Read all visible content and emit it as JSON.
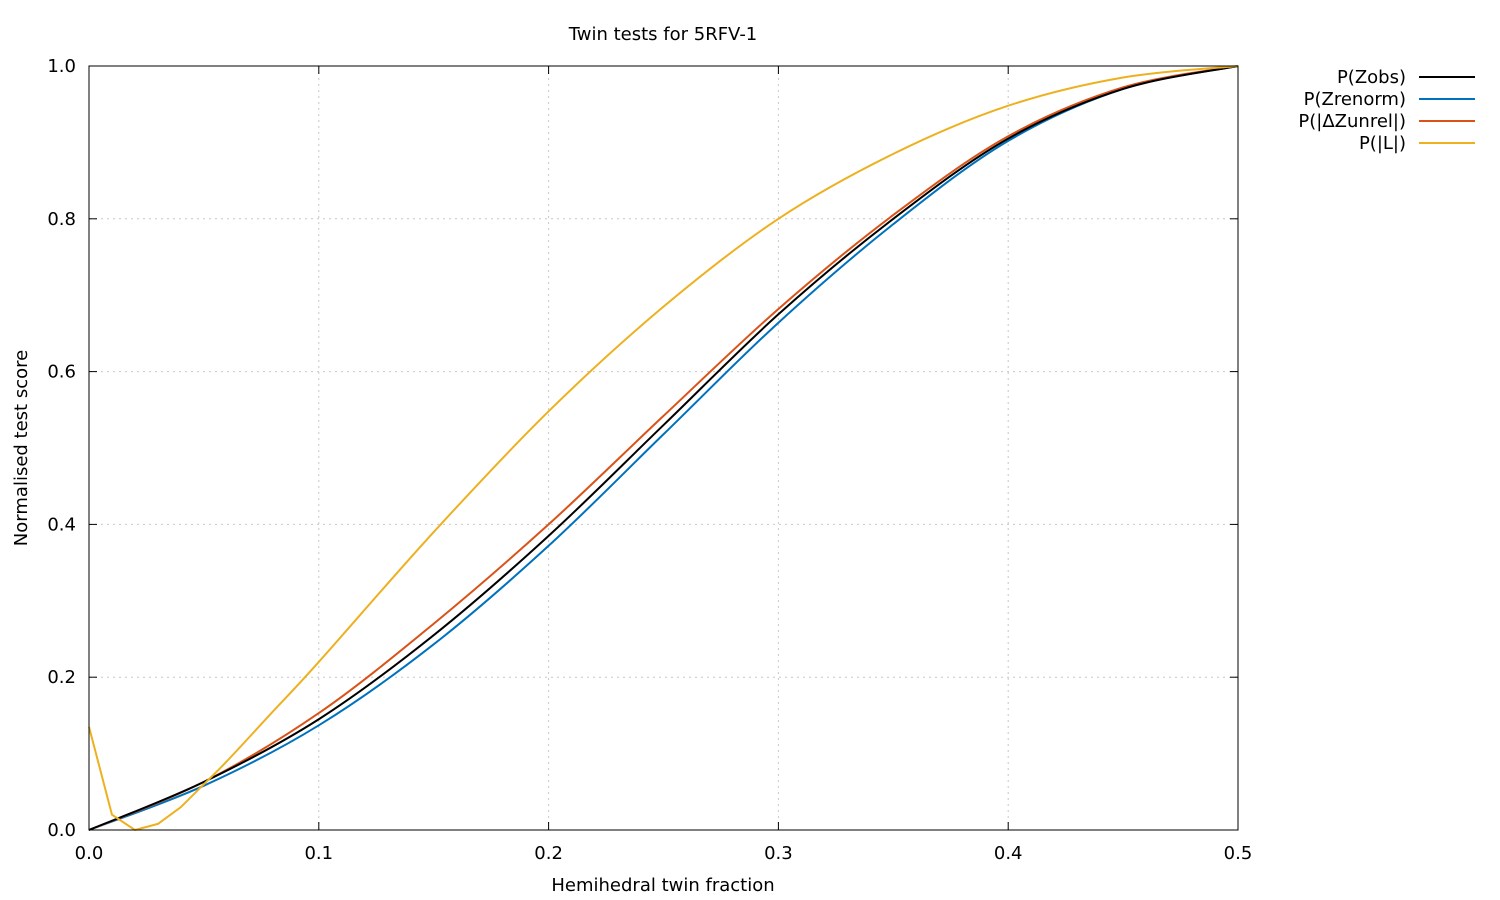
{
  "chart_data": {
    "type": "line",
    "title": "Twin tests for 5RFV-1",
    "xlabel": "Hemihedral twin fraction",
    "ylabel": "Normalised test score",
    "xlim": [
      0,
      0.5
    ],
    "ylim": [
      0,
      1
    ],
    "x_ticks": [
      "0.0",
      "0.1",
      "0.2",
      "0.3",
      "0.4",
      "0.5"
    ],
    "y_ticks": [
      "0.0",
      "0.2",
      "0.4",
      "0.6",
      "0.8",
      "1.0"
    ],
    "grid": true,
    "legend_position": "outside-top-right",
    "series": [
      {
        "name": "P(Zobs)",
        "color": "#000000",
        "x": [
          0,
          0.05,
          0.1,
          0.15,
          0.2,
          0.25,
          0.3,
          0.35,
          0.4,
          0.45,
          0.5
        ],
        "y": [
          0,
          0.063,
          0.145,
          0.255,
          0.385,
          0.53,
          0.675,
          0.8,
          0.905,
          0.97,
          1.0
        ]
      },
      {
        "name": "P(Zrenorm)",
        "color": "#0072bd",
        "x": [
          0,
          0.05,
          0.1,
          0.15,
          0.2,
          0.25,
          0.3,
          0.35,
          0.4,
          0.45,
          0.5
        ],
        "y": [
          0,
          0.058,
          0.137,
          0.243,
          0.372,
          0.518,
          0.664,
          0.793,
          0.902,
          0.97,
          1.0
        ]
      },
      {
        "name": "P(|ΔZunrel|)",
        "color": "#d95319",
        "x": [
          0,
          0.05,
          0.1,
          0.15,
          0.2,
          0.25,
          0.3,
          0.35,
          0.4,
          0.45,
          0.5
        ],
        "y": [
          0,
          0.063,
          0.153,
          0.27,
          0.4,
          0.542,
          0.682,
          0.805,
          0.908,
          0.972,
          1.0
        ]
      },
      {
        "name": "P(|L|)",
        "color": "#edb120",
        "x": [
          0,
          0.01,
          0.02,
          0.03,
          0.04,
          0.05,
          0.06,
          0.08,
          0.1,
          0.15,
          0.2,
          0.25,
          0.3,
          0.35,
          0.4,
          0.45,
          0.5
        ],
        "y": [
          0.135,
          0.02,
          0.0,
          0.008,
          0.03,
          0.06,
          0.09,
          0.155,
          0.22,
          0.39,
          0.548,
          0.685,
          0.8,
          0.885,
          0.948,
          0.985,
          1.0
        ]
      }
    ]
  }
}
